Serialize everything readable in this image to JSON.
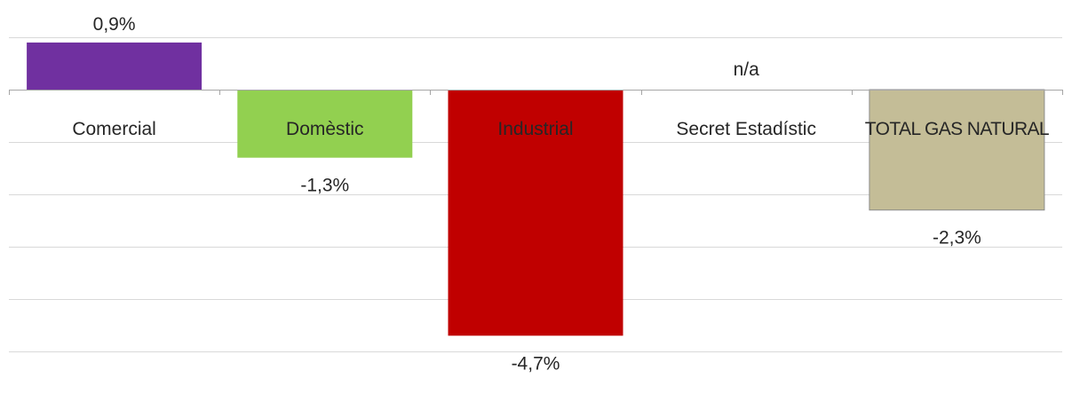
{
  "chart_data": {
    "type": "bar",
    "categories": [
      "Comercial",
      "Domèstic",
      "Industrial",
      "Secret Estadístic",
      "TOTAL GAS NATURAL"
    ],
    "values": [
      0.9,
      -1.3,
      -4.7,
      null,
      -2.3
    ],
    "data_labels": [
      "0,9%",
      "-1,3%",
      "-4,7%",
      "n/a",
      "-2,3%"
    ],
    "colors": [
      "#7030A0",
      "#92D050",
      "#C00000",
      "#FFFFFF",
      "#C4BD97"
    ],
    "ylim": [
      -5.0,
      1.0
    ],
    "grid": true,
    "title": "",
    "xlabel": "",
    "ylabel": ""
  }
}
